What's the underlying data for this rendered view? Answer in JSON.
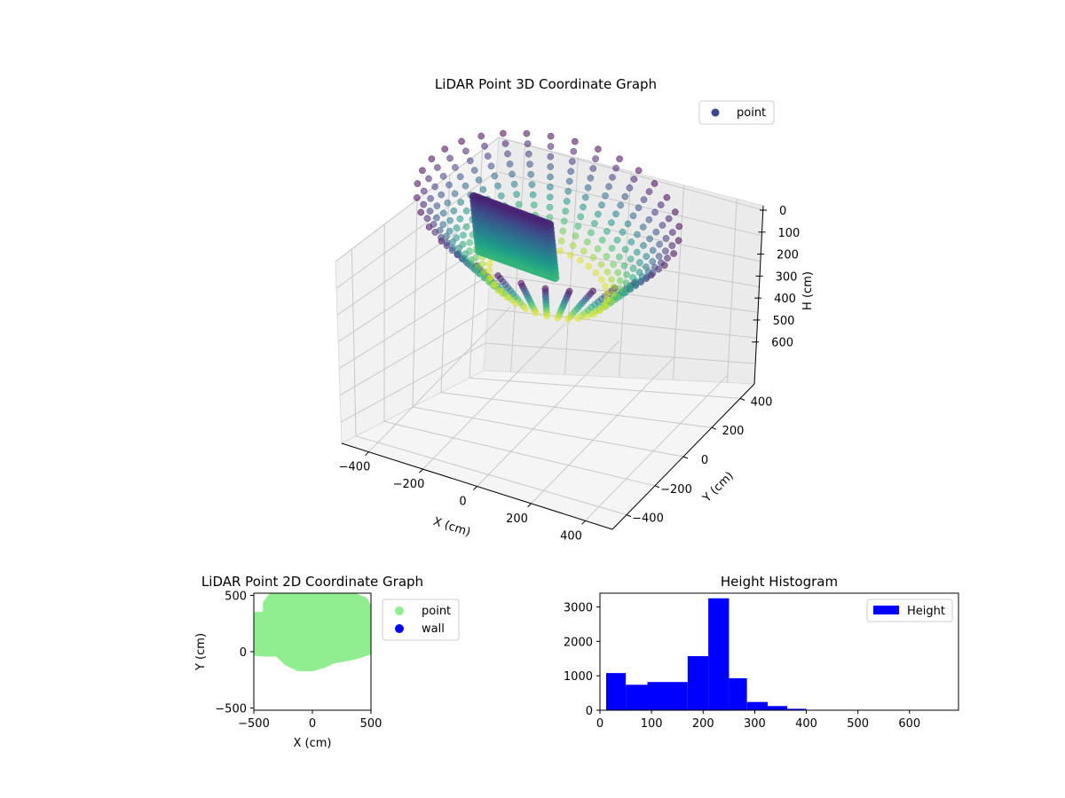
{
  "chart_data": [
    {
      "type": "scatter",
      "projection": "3d",
      "title": "LiDAR Point 3D Coordinate Graph",
      "xlabel": "X (cm)",
      "ylabel": "Y (cm)",
      "zlabel": "H (cm)",
      "xticks": [
        -400,
        -200,
        0,
        200,
        400
      ],
      "yticks": [
        -400,
        -200,
        0,
        200,
        400
      ],
      "zticks": [
        0,
        100,
        200,
        300,
        400,
        500,
        600
      ],
      "xlim": [
        -500,
        500
      ],
      "ylim": [
        -500,
        500
      ],
      "zlim": [
        0,
        680
      ],
      "z_inverted": true,
      "grid": true,
      "colormap": "viridis",
      "legend": {
        "placement": "upper-right",
        "entries": [
          "point"
        ],
        "marker_color": "#3e4989"
      },
      "series": [
        {
          "name": "point",
          "shape": "inclined circular ring of points with a dense wall section",
          "ring_center": [
            0,
            0
          ],
          "ring_radius": 430,
          "height_range": [
            60,
            330
          ]
        }
      ]
    },
    {
      "type": "scatter",
      "title": "LiDAR Point 2D Coordinate Graph",
      "xlabel": "X (cm)",
      "ylabel": "Y (cm)",
      "xticks": [
        -500,
        0,
        500
      ],
      "yticks": [
        -500,
        0,
        500
      ],
      "xlim": [
        -500,
        500
      ],
      "ylim": [
        -520,
        520
      ],
      "legend": {
        "placement": "outside-right",
        "entries": [
          {
            "name": "point",
            "color": "#90ee90"
          },
          {
            "name": "wall",
            "color": "#0000ff"
          }
        ]
      },
      "series": [
        {
          "name": "point",
          "color": "#90ee90",
          "outline": [
            [
              -500,
              330
            ],
            [
              -400,
              330
            ],
            [
              -400,
              430
            ],
            [
              -350,
              500
            ],
            [
              -150,
              520
            ],
            [
              150,
              520
            ],
            [
              350,
              500
            ],
            [
              450,
              460
            ],
            [
              480,
              400
            ],
            [
              500,
              300
            ],
            [
              500,
              0
            ],
            [
              380,
              -40
            ],
            [
              300,
              -60
            ],
            [
              180,
              -80
            ],
            [
              100,
              -120
            ],
            [
              0,
              -150
            ],
            [
              -120,
              -150
            ],
            [
              -220,
              -100
            ],
            [
              -300,
              -20
            ],
            [
              -420,
              -20
            ],
            [
              -500,
              -10
            ]
          ]
        },
        {
          "name": "wall",
          "color": "#0000ff"
        }
      ]
    },
    {
      "type": "bar",
      "histogram": true,
      "title": "Height Histogram",
      "xticks": [
        0,
        100,
        200,
        300,
        400,
        500,
        600
      ],
      "yticks": [
        0,
        1000,
        2000,
        3000
      ],
      "xlim": [
        0,
        695
      ],
      "ylim": [
        0,
        3400
      ],
      "legend": {
        "placement": "upper-right",
        "entries": [
          "Height"
        ]
      },
      "series": [
        {
          "name": "Height",
          "color": "#0000ff",
          "bins": [
            [
              12,
              50,
              1080
            ],
            [
              50,
              92,
              740
            ],
            [
              92,
              170,
              820
            ],
            [
              170,
              210,
              1570
            ],
            [
              210,
              250,
              3250
            ],
            [
              250,
              285,
              930
            ],
            [
              285,
              325,
              240
            ],
            [
              325,
              363,
              120
            ],
            [
              363,
              400,
              40
            ]
          ]
        }
      ]
    }
  ]
}
